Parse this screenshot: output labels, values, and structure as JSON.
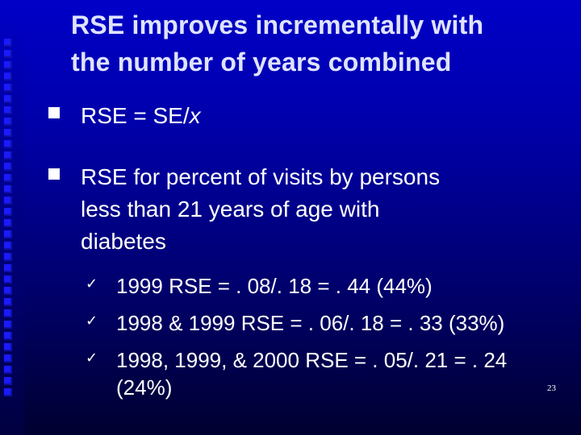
{
  "slide": {
    "title_line1": "RSE improves incrementally with",
    "title_line2": "the number of years combined",
    "bullets": [
      {
        "prefix": "RSE = SE/",
        "italic": "x"
      },
      {
        "lines": [
          "RSE for percent of visits by persons",
          "less than 21 years of age with",
          "diabetes"
        ]
      }
    ],
    "sub_bullets": [
      {
        "text": "1999  RSE = . 08/. 18 = . 44 (44%)"
      },
      {
        "text": "1998 & 1999 RSE = . 06/. 18 = . 33 (33%)"
      },
      {
        "text": "1998, 1999, & 2000 RSE = . 05/. 21 = . 24",
        "continuation": "(24%)"
      }
    ],
    "page_number": "23"
  },
  "icons": {
    "bullet": "square-bullet-icon",
    "check": "checkmark-icon"
  },
  "colors": {
    "background": "#0000c8",
    "title": "#dfe3ff",
    "text": "#ffffff"
  }
}
